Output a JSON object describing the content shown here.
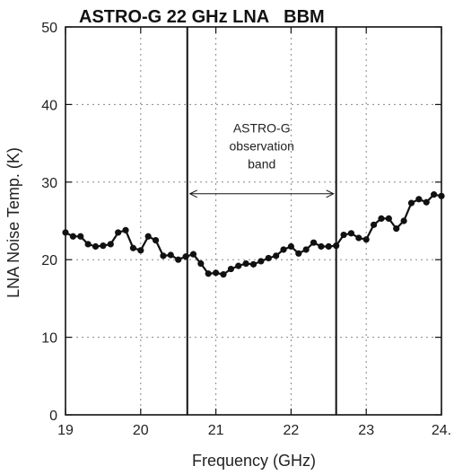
{
  "chart_data": {
    "type": "line",
    "title": "ASTRO-G 22 GHz LNA   BBM",
    "xlabel": "Frequency (GHz)",
    "ylabel": "LNA Noise Temp. (K)",
    "xlim": [
      19,
      24
    ],
    "ylim": [
      0,
      50
    ],
    "x_ticks": [
      "19",
      "20",
      "21",
      "22",
      "23",
      "24."
    ],
    "y_ticks": [
      "0",
      "10",
      "20",
      "30",
      "40",
      "50"
    ],
    "grid": true,
    "series": [
      {
        "x": [
          19.0,
          19.1,
          19.2,
          19.3,
          19.4,
          19.5,
          19.6,
          19.7,
          19.8,
          19.9,
          20.0,
          20.1,
          20.2,
          20.3,
          20.4,
          20.5,
          20.6,
          20.7,
          20.8,
          20.9,
          21.0,
          21.1,
          21.2,
          21.3,
          21.4,
          21.5,
          21.6,
          21.7,
          21.8,
          21.9,
          22.0,
          22.1,
          22.2,
          22.3,
          22.4,
          22.5,
          22.6,
          22.7,
          22.8,
          22.9,
          23.0,
          23.1,
          23.2,
          23.3,
          23.4,
          23.5,
          23.6,
          23.7,
          23.8,
          23.9,
          24.0
        ],
        "values": [
          23.5,
          23.0,
          23.0,
          22.0,
          21.7,
          21.8,
          22.0,
          23.5,
          23.8,
          21.5,
          21.2,
          23.0,
          22.5,
          20.5,
          20.6,
          20.0,
          20.4,
          20.7,
          19.5,
          18.2,
          18.3,
          18.1,
          18.8,
          19.2,
          19.5,
          19.4,
          19.8,
          20.2,
          20.5,
          21.3,
          21.7,
          20.8,
          21.3,
          22.2,
          21.7,
          21.7,
          21.8,
          23.2,
          23.4,
          22.8,
          22.6,
          24.5,
          25.3,
          25.3,
          24.0,
          25.0,
          27.3,
          27.8,
          27.4,
          28.4,
          28.2
        ]
      }
    ],
    "vertical_lines": [
      20.62,
      22.6
    ],
    "annotation": {
      "lines": [
        "ASTRO-G",
        "observation",
        "band"
      ],
      "arrow_from": 20.62,
      "arrow_to": 22.6,
      "arrow_y": 28.5,
      "text_y": 37.0
    }
  }
}
